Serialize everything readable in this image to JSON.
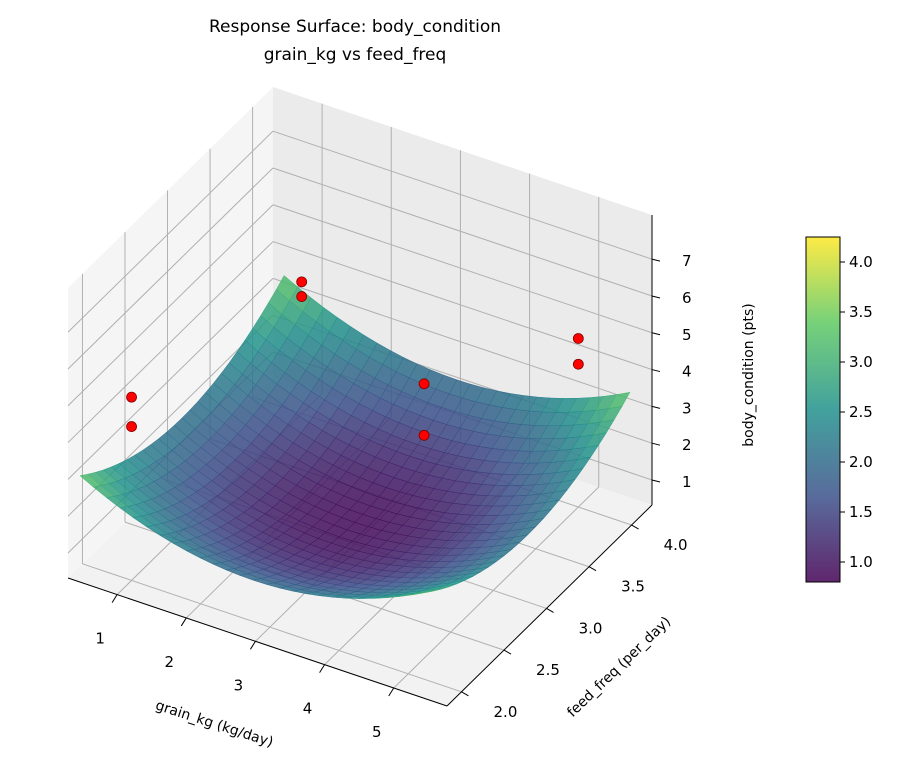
{
  "chart_data": {
    "type": "surface",
    "title": "Response Surface: body_condition",
    "subtitle": "grain_kg vs feed_freq",
    "xlabel": "grain_kg (kg/day)",
    "ylabel": "feed_freq (per_day)",
    "zlabel": "body_condition (pts)",
    "xlim": [
      0.29,
      5.77
    ],
    "ylim": [
      1.83,
      4.24
    ],
    "zlim": [
      0.32,
      8.2
    ],
    "xticks": [
      1,
      2,
      3,
      4,
      5
    ],
    "yticks": [
      "2.0",
      "2.5",
      "3.0",
      "3.5",
      "4.0"
    ],
    "zticks": [
      1,
      2,
      3,
      4,
      5,
      6,
      7
    ],
    "grid": true,
    "colormap": "viridis",
    "surface": {
      "x_range": [
        0.5,
        5.5
      ],
      "y_range": [
        1.8,
        4.2
      ],
      "model": "0.9 + 0.2*(x-3)^2 + 0.8*(y-3)^2",
      "alpha": 0.85
    },
    "points": {
      "color": "#ff0000",
      "x": [
        1,
        1,
        1,
        1,
        4,
        4,
        5,
        5
      ],
      "y": [
        2,
        2,
        4,
        4,
        3,
        3,
        4,
        4
      ],
      "z": [
        5.3,
        4.5,
        3.9,
        3.5,
        5.3,
        3.9,
        4.9,
        4.2
      ]
    },
    "colorbar": {
      "range": [
        0.8,
        4.25
      ],
      "ticks": [
        "1.0",
        "1.5",
        "2.0",
        "2.5",
        "3.0",
        "3.5",
        "4.0"
      ]
    }
  }
}
